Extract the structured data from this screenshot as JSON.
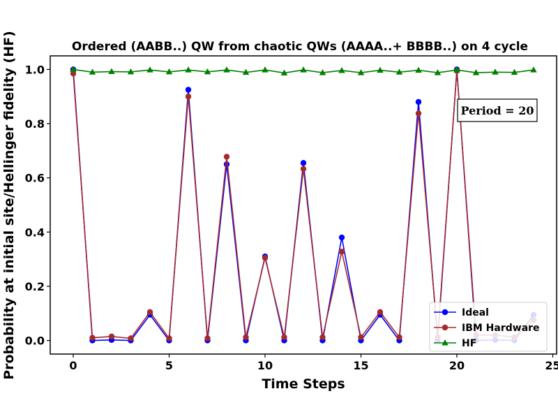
{
  "chart_data": {
    "type": "line",
    "title": "Ordered (AABB..) QW from chaotic QWs (AAAA..+ BBBB..) on 4 cycle",
    "xlabel": "Time Steps",
    "ylabel": "Probability at initial site/Hellinger fidelity (HF)",
    "xlim": [
      -1.2,
      25.2
    ],
    "ylim": [
      -0.05,
      1.05
    ],
    "xticks": [
      0,
      5,
      10,
      15,
      20,
      25
    ],
    "yticks": [
      0.0,
      0.2,
      0.4,
      0.6,
      0.8,
      1.0
    ],
    "xtick_labels": [
      "0",
      "5",
      "10",
      "15",
      "20",
      "25"
    ],
    "ytick_labels": [
      "0.0",
      "0.2",
      "0.4",
      "0.6",
      "0.8",
      "1.0"
    ],
    "grid": false,
    "legend_position": "bottom-right",
    "annotation": "Period = 20",
    "series": [
      {
        "name": "Ideal",
        "color": "#0000ff",
        "marker": "circle",
        "x": [
          0,
          1,
          2,
          3,
          4,
          5,
          6,
          7,
          8,
          9,
          10,
          11,
          12,
          13,
          14,
          15,
          16,
          17,
          18,
          19,
          20,
          21,
          22,
          23,
          24
        ],
        "y": [
          1.0,
          0.0,
          0.002,
          0.0,
          0.095,
          0.0,
          0.925,
          0.0,
          0.65,
          0.0,
          0.31,
          0.0,
          0.655,
          0.0,
          0.38,
          0.0,
          0.095,
          0.0,
          0.88,
          0.0,
          1.0,
          0.0,
          0.002,
          0.0,
          0.095
        ]
      },
      {
        "name": "IBM Hardware",
        "color": "#a52a2a",
        "marker": "circle",
        "x": [
          0,
          1,
          2,
          3,
          4,
          5,
          6,
          7,
          8,
          9,
          10,
          11,
          12,
          13,
          14,
          15,
          16,
          17,
          18,
          19,
          20,
          21,
          22,
          23,
          24
        ],
        "y": [
          0.985,
          0.01,
          0.015,
          0.008,
          0.105,
          0.008,
          0.9,
          0.008,
          0.678,
          0.012,
          0.305,
          0.012,
          0.633,
          0.012,
          0.328,
          0.012,
          0.105,
          0.012,
          0.838,
          0.012,
          0.995,
          0.02,
          0.02,
          0.012,
          0.075
        ]
      },
      {
        "name": "HF",
        "color": "#008000",
        "marker": "triangle",
        "x": [
          0,
          1,
          2,
          3,
          4,
          5,
          6,
          7,
          8,
          9,
          10,
          11,
          12,
          13,
          14,
          15,
          16,
          17,
          18,
          19,
          20,
          21,
          22,
          23,
          24
        ],
        "y": [
          1.0,
          0.99,
          0.992,
          0.991,
          0.998,
          0.991,
          0.998,
          0.991,
          0.998,
          0.989,
          0.998,
          0.987,
          0.998,
          0.988,
          0.996,
          0.988,
          0.997,
          0.99,
          0.997,
          0.988,
          0.998,
          0.988,
          0.99,
          0.989,
          0.998
        ]
      }
    ]
  }
}
